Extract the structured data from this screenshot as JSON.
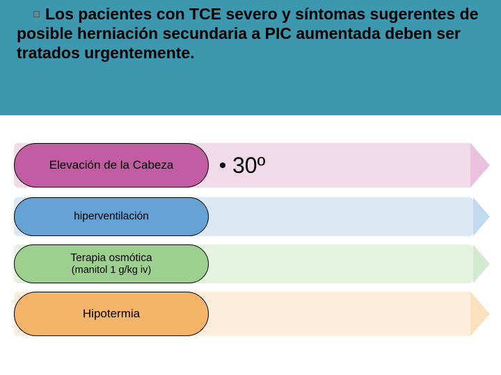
{
  "header": {
    "text": "Los pacientes con TCE severo y síntomas sugerentes de posible herniación secundaria a PIC aumentada deben ser tratados urgentemente.",
    "band_color": "#3d97ae",
    "text_color": "#000000",
    "fontsize": 23
  },
  "rows": [
    {
      "label": "Elevación de la Cabeza",
      "label2": "",
      "value": "30º",
      "pill_color": "#c25da3",
      "body_color": "#f2dbe9",
      "head_color": "#eac1dc",
      "size": "normal"
    },
    {
      "label": "hiperventilación",
      "label2": "",
      "value": "",
      "pill_color": "#66a3d4",
      "body_color": "#dbe8f3",
      "head_color": "#c3daee",
      "size": "small"
    },
    {
      "label": "Terapia osmótica",
      "label2": "(manitol 1 g/kg iv)",
      "value": "",
      "pill_color": "#9dd08e",
      "body_color": "#e7f3e1",
      "head_color": "#d4ead0",
      "size": "small"
    },
    {
      "label": "Hipotermia",
      "label2": "",
      "value": "",
      "pill_color": "#f4b56a",
      "body_color": "#fceedb",
      "head_color": "#fae2c1",
      "size": "normal"
    }
  ]
}
